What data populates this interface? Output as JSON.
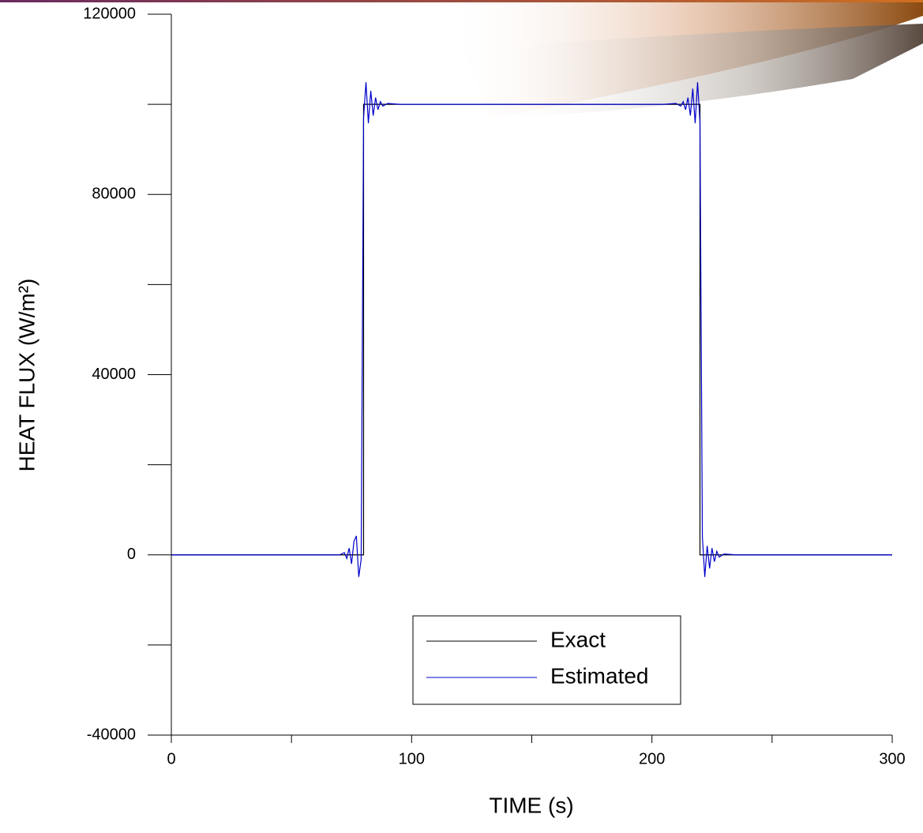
{
  "chart_data": {
    "type": "line",
    "x_label": "TIME (s)",
    "y_label": "HEAT FLUX (W/m²)",
    "xlim": [
      0,
      300
    ],
    "ylim": [
      -40000,
      120000
    ],
    "xticks": [
      0,
      100,
      200,
      300
    ],
    "x_minor_ticks": [
      50,
      150,
      250
    ],
    "yticks": [
      -40000,
      0,
      40000,
      80000,
      120000
    ],
    "y_minor_ticks": [
      -20000,
      20000,
      60000,
      100000
    ],
    "grid": false,
    "legend_position": "lower center",
    "series": [
      {
        "name": "Exact",
        "color": "#000000",
        "x": [
          0,
          80,
          80,
          220,
          220,
          300
        ],
        "values": [
          0,
          0,
          100000,
          100000,
          0,
          0
        ]
      },
      {
        "name": "Estimated",
        "color": "#0000cc",
        "x": [
          0,
          40,
          65,
          70,
          72,
          73,
          74,
          75,
          76,
          77,
          78,
          79,
          80,
          81,
          82,
          83,
          84,
          85,
          86,
          87,
          88,
          90,
          95,
          150,
          205,
          210,
          212,
          213,
          214,
          215,
          216,
          217,
          218,
          219,
          220,
          221,
          222,
          223,
          224,
          225,
          226,
          227,
          228,
          230,
          235,
          260,
          300
        ],
        "values": [
          0,
          0,
          0,
          0,
          500,
          -800,
          1500,
          -2000,
          3000,
          4200,
          -4900,
          -1000,
          97000,
          104900,
          95800,
          103000,
          97500,
          101500,
          98800,
          100600,
          99600,
          100200,
          100000,
          100000,
          100000,
          100200,
          99600,
          100600,
          98800,
          101500,
          97500,
          103500,
          95800,
          104900,
          96000,
          4000,
          -4900,
          2000,
          -3000,
          1500,
          -1500,
          800,
          -500,
          200,
          0,
          0,
          0
        ]
      }
    ]
  }
}
